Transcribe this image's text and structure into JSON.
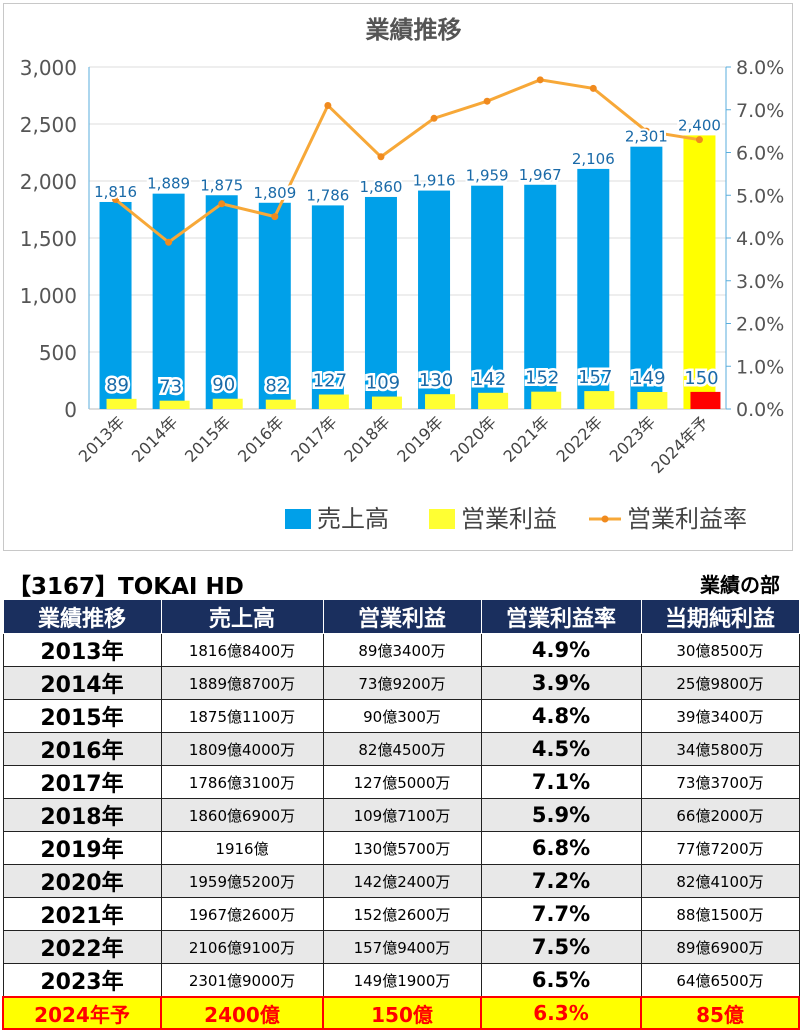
{
  "chart_data": {
    "type": "bar",
    "title": "業績推移",
    "categories": [
      "2013年",
      "2014年",
      "2015年",
      "2016年",
      "2017年",
      "2018年",
      "2019年",
      "2020年",
      "2021年",
      "2022年",
      "2023年",
      "2024年予"
    ],
    "series": [
      {
        "name": "売上高",
        "type": "bar",
        "axis": "left",
        "color": "#00a0e9",
        "values": [
          1816,
          1889,
          1875,
          1809,
          1786,
          1860,
          1916,
          1959,
          1967,
          2106,
          2301,
          2400
        ],
        "forecast_color": "#ffff00"
      },
      {
        "name": "営業利益",
        "type": "bar",
        "axis": "left",
        "color": "#ffff33",
        "values": [
          89,
          73,
          90,
          82,
          127,
          109,
          130,
          142,
          152,
          157,
          149,
          150
        ],
        "forecast_color": "#ff0000"
      },
      {
        "name": "営業利益率",
        "type": "line",
        "axis": "right",
        "color": "#f7a838",
        "values": [
          4.9,
          3.9,
          4.8,
          4.5,
          7.1,
          5.9,
          6.8,
          7.2,
          7.7,
          7.5,
          6.5,
          6.3
        ]
      }
    ],
    "y_left": {
      "min": 0,
      "max": 3000,
      "ticks": [
        "0",
        "500",
        "1,000",
        "1,500",
        "2,000",
        "2,500",
        "3,000"
      ]
    },
    "y_right": {
      "min": 0,
      "max": 8,
      "ticks": [
        "0.0%",
        "1.0%",
        "2.0%",
        "3.0%",
        "4.0%",
        "5.0%",
        "6.0%",
        "7.0%",
        "8.0%"
      ]
    },
    "sales_labels": [
      "1,816",
      "1,889",
      "1,875",
      "1,809",
      "1,786",
      "1,860",
      "1,916",
      "1,959",
      "1,967",
      "2,106",
      "2,301",
      "2,400"
    ],
    "profit_labels": [
      "89",
      "73",
      "90",
      "82",
      "127",
      "109",
      "130",
      "142",
      "152",
      "157",
      "149",
      "150"
    ],
    "legend_position": "bottom",
    "grid": true
  },
  "table": {
    "title": "【3167】TOKAI HD",
    "section": "業績の部",
    "headers": [
      "業績推移",
      "売上高",
      "営業利益",
      "営業利益率",
      "当期純利益"
    ],
    "rows": [
      [
        "2013年",
        "1816億8400万",
        "89億3400万",
        "4.9%",
        "30億8500万"
      ],
      [
        "2014年",
        "1889億8700万",
        "73億9200万",
        "3.9%",
        "25億9800万"
      ],
      [
        "2015年",
        "1875億1100万",
        "90億300万",
        "4.8%",
        "39億3400万"
      ],
      [
        "2016年",
        "1809億4000万",
        "82億4500万",
        "4.5%",
        "34億5800万"
      ],
      [
        "2017年",
        "1786億3100万",
        "127億5000万",
        "7.1%",
        "73億3700万"
      ],
      [
        "2018年",
        "1860億6900万",
        "109億7100万",
        "5.9%",
        "66億2000万"
      ],
      [
        "2019年",
        "1916億",
        "130億5700万",
        "6.8%",
        "77億7200万"
      ],
      [
        "2020年",
        "1959億5200万",
        "142億2400万",
        "7.2%",
        "82億4100万"
      ],
      [
        "2021年",
        "1967億2600万",
        "152億2600万",
        "7.7%",
        "88億1500万"
      ],
      [
        "2022年",
        "2106億9100万",
        "157億9400万",
        "7.5%",
        "89億6900万"
      ],
      [
        "2023年",
        "2301億9000万",
        "149億1900万",
        "6.5%",
        "64億6500万"
      ]
    ],
    "forecast_row": [
      "2024年予",
      "2400億",
      "150億",
      "6.3%",
      "85億"
    ]
  }
}
